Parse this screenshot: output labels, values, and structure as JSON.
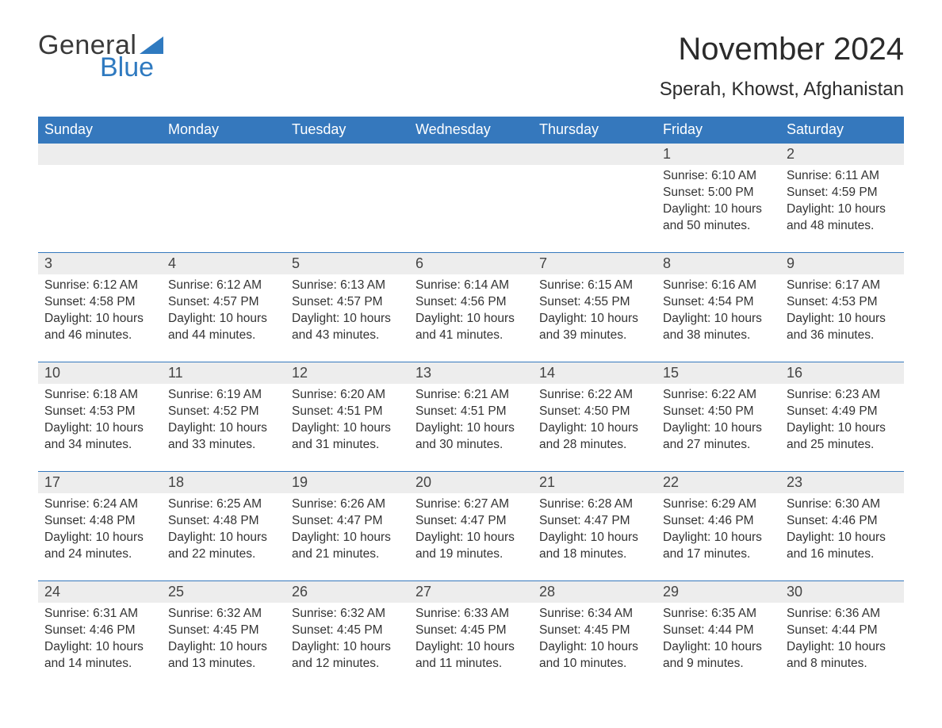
{
  "brand": {
    "word1": "General",
    "word2": "Blue",
    "accent_color": "#2f7ac0"
  },
  "title": "November 2024",
  "location": "Sperah, Khowst, Afghanistan",
  "colors": {
    "header_bg": "#3578bd",
    "header_text": "#ffffff",
    "daynum_bg": "#ededed",
    "text": "#333333",
    "row_border": "#3578bd",
    "background": "#ffffff"
  },
  "typography": {
    "title_fontsize": 40,
    "location_fontsize": 24,
    "dayheader_fontsize": 18,
    "daynum_fontsize": 18,
    "body_fontsize": 15.5
  },
  "layout": {
    "columns": 7,
    "rows": 5,
    "first_weekday": "Sunday"
  },
  "day_headers": [
    "Sunday",
    "Monday",
    "Tuesday",
    "Wednesday",
    "Thursday",
    "Friday",
    "Saturday"
  ],
  "weeks": [
    [
      null,
      null,
      null,
      null,
      null,
      {
        "n": "1",
        "sunrise": "6:10 AM",
        "sunset": "5:00 PM",
        "daylight": "10 hours and 50 minutes."
      },
      {
        "n": "2",
        "sunrise": "6:11 AM",
        "sunset": "4:59 PM",
        "daylight": "10 hours and 48 minutes."
      }
    ],
    [
      {
        "n": "3",
        "sunrise": "6:12 AM",
        "sunset": "4:58 PM",
        "daylight": "10 hours and 46 minutes."
      },
      {
        "n": "4",
        "sunrise": "6:12 AM",
        "sunset": "4:57 PM",
        "daylight": "10 hours and 44 minutes."
      },
      {
        "n": "5",
        "sunrise": "6:13 AM",
        "sunset": "4:57 PM",
        "daylight": "10 hours and 43 minutes."
      },
      {
        "n": "6",
        "sunrise": "6:14 AM",
        "sunset": "4:56 PM",
        "daylight": "10 hours and 41 minutes."
      },
      {
        "n": "7",
        "sunrise": "6:15 AM",
        "sunset": "4:55 PM",
        "daylight": "10 hours and 39 minutes."
      },
      {
        "n": "8",
        "sunrise": "6:16 AM",
        "sunset": "4:54 PM",
        "daylight": "10 hours and 38 minutes."
      },
      {
        "n": "9",
        "sunrise": "6:17 AM",
        "sunset": "4:53 PM",
        "daylight": "10 hours and 36 minutes."
      }
    ],
    [
      {
        "n": "10",
        "sunrise": "6:18 AM",
        "sunset": "4:53 PM",
        "daylight": "10 hours and 34 minutes."
      },
      {
        "n": "11",
        "sunrise": "6:19 AM",
        "sunset": "4:52 PM",
        "daylight": "10 hours and 33 minutes."
      },
      {
        "n": "12",
        "sunrise": "6:20 AM",
        "sunset": "4:51 PM",
        "daylight": "10 hours and 31 minutes."
      },
      {
        "n": "13",
        "sunrise": "6:21 AM",
        "sunset": "4:51 PM",
        "daylight": "10 hours and 30 minutes."
      },
      {
        "n": "14",
        "sunrise": "6:22 AM",
        "sunset": "4:50 PM",
        "daylight": "10 hours and 28 minutes."
      },
      {
        "n": "15",
        "sunrise": "6:22 AM",
        "sunset": "4:50 PM",
        "daylight": "10 hours and 27 minutes."
      },
      {
        "n": "16",
        "sunrise": "6:23 AM",
        "sunset": "4:49 PM",
        "daylight": "10 hours and 25 minutes."
      }
    ],
    [
      {
        "n": "17",
        "sunrise": "6:24 AM",
        "sunset": "4:48 PM",
        "daylight": "10 hours and 24 minutes."
      },
      {
        "n": "18",
        "sunrise": "6:25 AM",
        "sunset": "4:48 PM",
        "daylight": "10 hours and 22 minutes."
      },
      {
        "n": "19",
        "sunrise": "6:26 AM",
        "sunset": "4:47 PM",
        "daylight": "10 hours and 21 minutes."
      },
      {
        "n": "20",
        "sunrise": "6:27 AM",
        "sunset": "4:47 PM",
        "daylight": "10 hours and 19 minutes."
      },
      {
        "n": "21",
        "sunrise": "6:28 AM",
        "sunset": "4:47 PM",
        "daylight": "10 hours and 18 minutes."
      },
      {
        "n": "22",
        "sunrise": "6:29 AM",
        "sunset": "4:46 PM",
        "daylight": "10 hours and 17 minutes."
      },
      {
        "n": "23",
        "sunrise": "6:30 AM",
        "sunset": "4:46 PM",
        "daylight": "10 hours and 16 minutes."
      }
    ],
    [
      {
        "n": "24",
        "sunrise": "6:31 AM",
        "sunset": "4:46 PM",
        "daylight": "10 hours and 14 minutes."
      },
      {
        "n": "25",
        "sunrise": "6:32 AM",
        "sunset": "4:45 PM",
        "daylight": "10 hours and 13 minutes."
      },
      {
        "n": "26",
        "sunrise": "6:32 AM",
        "sunset": "4:45 PM",
        "daylight": "10 hours and 12 minutes."
      },
      {
        "n": "27",
        "sunrise": "6:33 AM",
        "sunset": "4:45 PM",
        "daylight": "10 hours and 11 minutes."
      },
      {
        "n": "28",
        "sunrise": "6:34 AM",
        "sunset": "4:45 PM",
        "daylight": "10 hours and 10 minutes."
      },
      {
        "n": "29",
        "sunrise": "6:35 AM",
        "sunset": "4:44 PM",
        "daylight": "10 hours and 9 minutes."
      },
      {
        "n": "30",
        "sunrise": "6:36 AM",
        "sunset": "4:44 PM",
        "daylight": "10 hours and 8 minutes."
      }
    ]
  ],
  "labels": {
    "sunrise": "Sunrise:",
    "sunset": "Sunset:",
    "daylight": "Daylight:"
  }
}
